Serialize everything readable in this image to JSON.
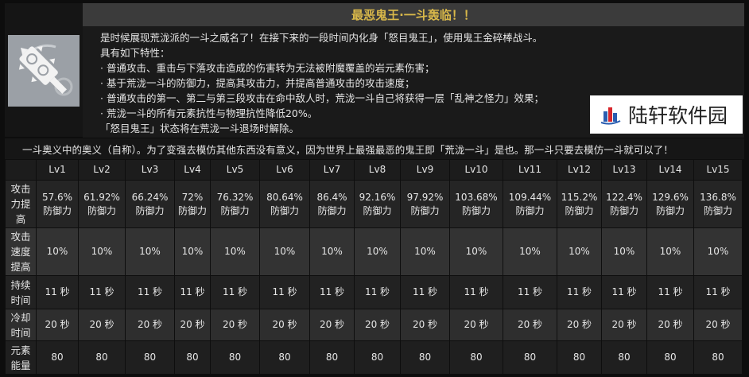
{
  "title": "最恶鬼王·一斗轰临！！",
  "icon": "spiked-club-icon",
  "description": [
    "是时候展现荒泷派的一斗之威名了！在接下来的一段时间内化身「怒目鬼王」，使用鬼王金碎棒战斗。",
    "具有如下特性：",
    "· 普通攻击、重击与下落攻击造成的伤害转为无法被附魔覆盖的岩元素伤害；",
    "· 基于荒泷一斗的防御力，提高其攻击力，并提高普通攻击的攻击速度；",
    "· 普通攻击的第一、第二与第三段攻击在命中敌人时，荒泷一斗自己将获得一层「乱神之怪力」效果；",
    "· 荒泷一斗的所有元素抗性与物理抗性降低20%。",
    "「怒目鬼王」状态将在荒泷一斗退场时解除。"
  ],
  "quote": "一斗奥义中的奥义（自称）。为了变强去模仿其他东西没有意义，因为世界上最强最恶的鬼王即「荒泷一斗」是也。那一斗只要去模仿一斗就可以了！",
  "table": {
    "headers": [
      "Lv1",
      "Lv2",
      "Lv3",
      "Lv4",
      "Lv5",
      "Lv6",
      "Lv7",
      "Lv8",
      "Lv9",
      "Lv10",
      "Lv11",
      "Lv12",
      "Lv13",
      "Lv14",
      "Lv15"
    ],
    "rows": [
      {
        "label": "攻击力提高",
        "values": [
          "57.6% 防御力",
          "61.92% 防御力",
          "66.24% 防御力",
          "72% 防御力",
          "76.32% 防御力",
          "80.64% 防御力",
          "86.4% 防御力",
          "92.16% 防御力",
          "97.92% 防御力",
          "103.68% 防御力",
          "109.44% 防御力",
          "115.2% 防御力",
          "122.4% 防御力",
          "129.6% 防御力",
          "136.8% 防御力"
        ]
      },
      {
        "label": "攻击速度提高",
        "values": [
          "10%",
          "10%",
          "10%",
          "10%",
          "10%",
          "10%",
          "10%",
          "10%",
          "10%",
          "10%",
          "10%",
          "10%",
          "10%",
          "10%",
          "10%"
        ]
      },
      {
        "label": "持续时间",
        "values": [
          "11 秒",
          "11 秒",
          "11 秒",
          "11 秒",
          "11 秒",
          "11 秒",
          "11 秒",
          "11 秒",
          "11 秒",
          "11 秒",
          "11 秒",
          "11 秒",
          "11 秒",
          "11 秒",
          "11 秒"
        ]
      },
      {
        "label": "冷却时间",
        "values": [
          "20 秒",
          "20 秒",
          "20 秒",
          "20 秒",
          "20 秒",
          "20 秒",
          "20 秒",
          "20 秒",
          "20 秒",
          "20 秒",
          "20 秒",
          "20 秒",
          "20 秒",
          "20 秒",
          "20 秒"
        ]
      },
      {
        "label": "元素能量",
        "values": [
          "80",
          "80",
          "80",
          "80",
          "80",
          "80",
          "80",
          "80",
          "80",
          "80",
          "80",
          "80",
          "80",
          "80",
          "80"
        ]
      }
    ]
  },
  "watermark": "陆轩软件园",
  "colors": {
    "title": "#d9b84a",
    "background": "#0d0d0d"
  }
}
